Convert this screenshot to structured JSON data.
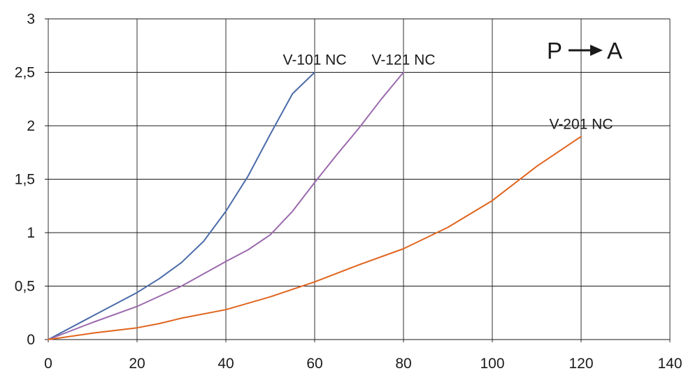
{
  "chart_data": {
    "type": "line",
    "title": "",
    "xlabel": "",
    "ylabel": "",
    "xlim": [
      0,
      140
    ],
    "ylim": [
      0,
      3
    ],
    "x_ticks": [
      "0",
      "20",
      "40",
      "60",
      "80",
      "100",
      "120",
      "140"
    ],
    "y_ticks": [
      "0",
      "0,5",
      "1",
      "1,5",
      "2",
      "2,5",
      "3"
    ],
    "grid": true,
    "flow_annotation": {
      "from": "P",
      "to": "A",
      "arrow_icon": "right-arrow-icon"
    },
    "series": [
      {
        "name": "V-101 NC",
        "color": "#4a6aa8",
        "points": [
          [
            0,
            0
          ],
          [
            10,
            0.22
          ],
          [
            20,
            0.44
          ],
          [
            25,
            0.57
          ],
          [
            30,
            0.72
          ],
          [
            35,
            0.92
          ],
          [
            40,
            1.2
          ],
          [
            45,
            1.53
          ],
          [
            50,
            1.92
          ],
          [
            55,
            2.3
          ],
          [
            60,
            2.5
          ]
        ]
      },
      {
        "name": "V-121 NC",
        "color": "#9b6aad",
        "points": [
          [
            0,
            0
          ],
          [
            10,
            0.16
          ],
          [
            20,
            0.31
          ],
          [
            30,
            0.5
          ],
          [
            40,
            0.73
          ],
          [
            45,
            0.84
          ],
          [
            50,
            0.98
          ],
          [
            55,
            1.2
          ],
          [
            60,
            1.47
          ],
          [
            65,
            1.73
          ],
          [
            70,
            1.98
          ],
          [
            75,
            2.25
          ],
          [
            80,
            2.5
          ]
        ]
      },
      {
        "name": "V-201 NC",
        "color": "#e0641e",
        "points": [
          [
            0,
            0
          ],
          [
            10,
            0.06
          ],
          [
            20,
            0.11
          ],
          [
            25,
            0.15
          ],
          [
            30,
            0.2
          ],
          [
            40,
            0.28
          ],
          [
            50,
            0.4
          ],
          [
            60,
            0.54
          ],
          [
            70,
            0.7
          ],
          [
            80,
            0.85
          ],
          [
            90,
            1.05
          ],
          [
            100,
            1.3
          ],
          [
            110,
            1.62
          ],
          [
            120,
            1.9
          ]
        ]
      }
    ]
  }
}
